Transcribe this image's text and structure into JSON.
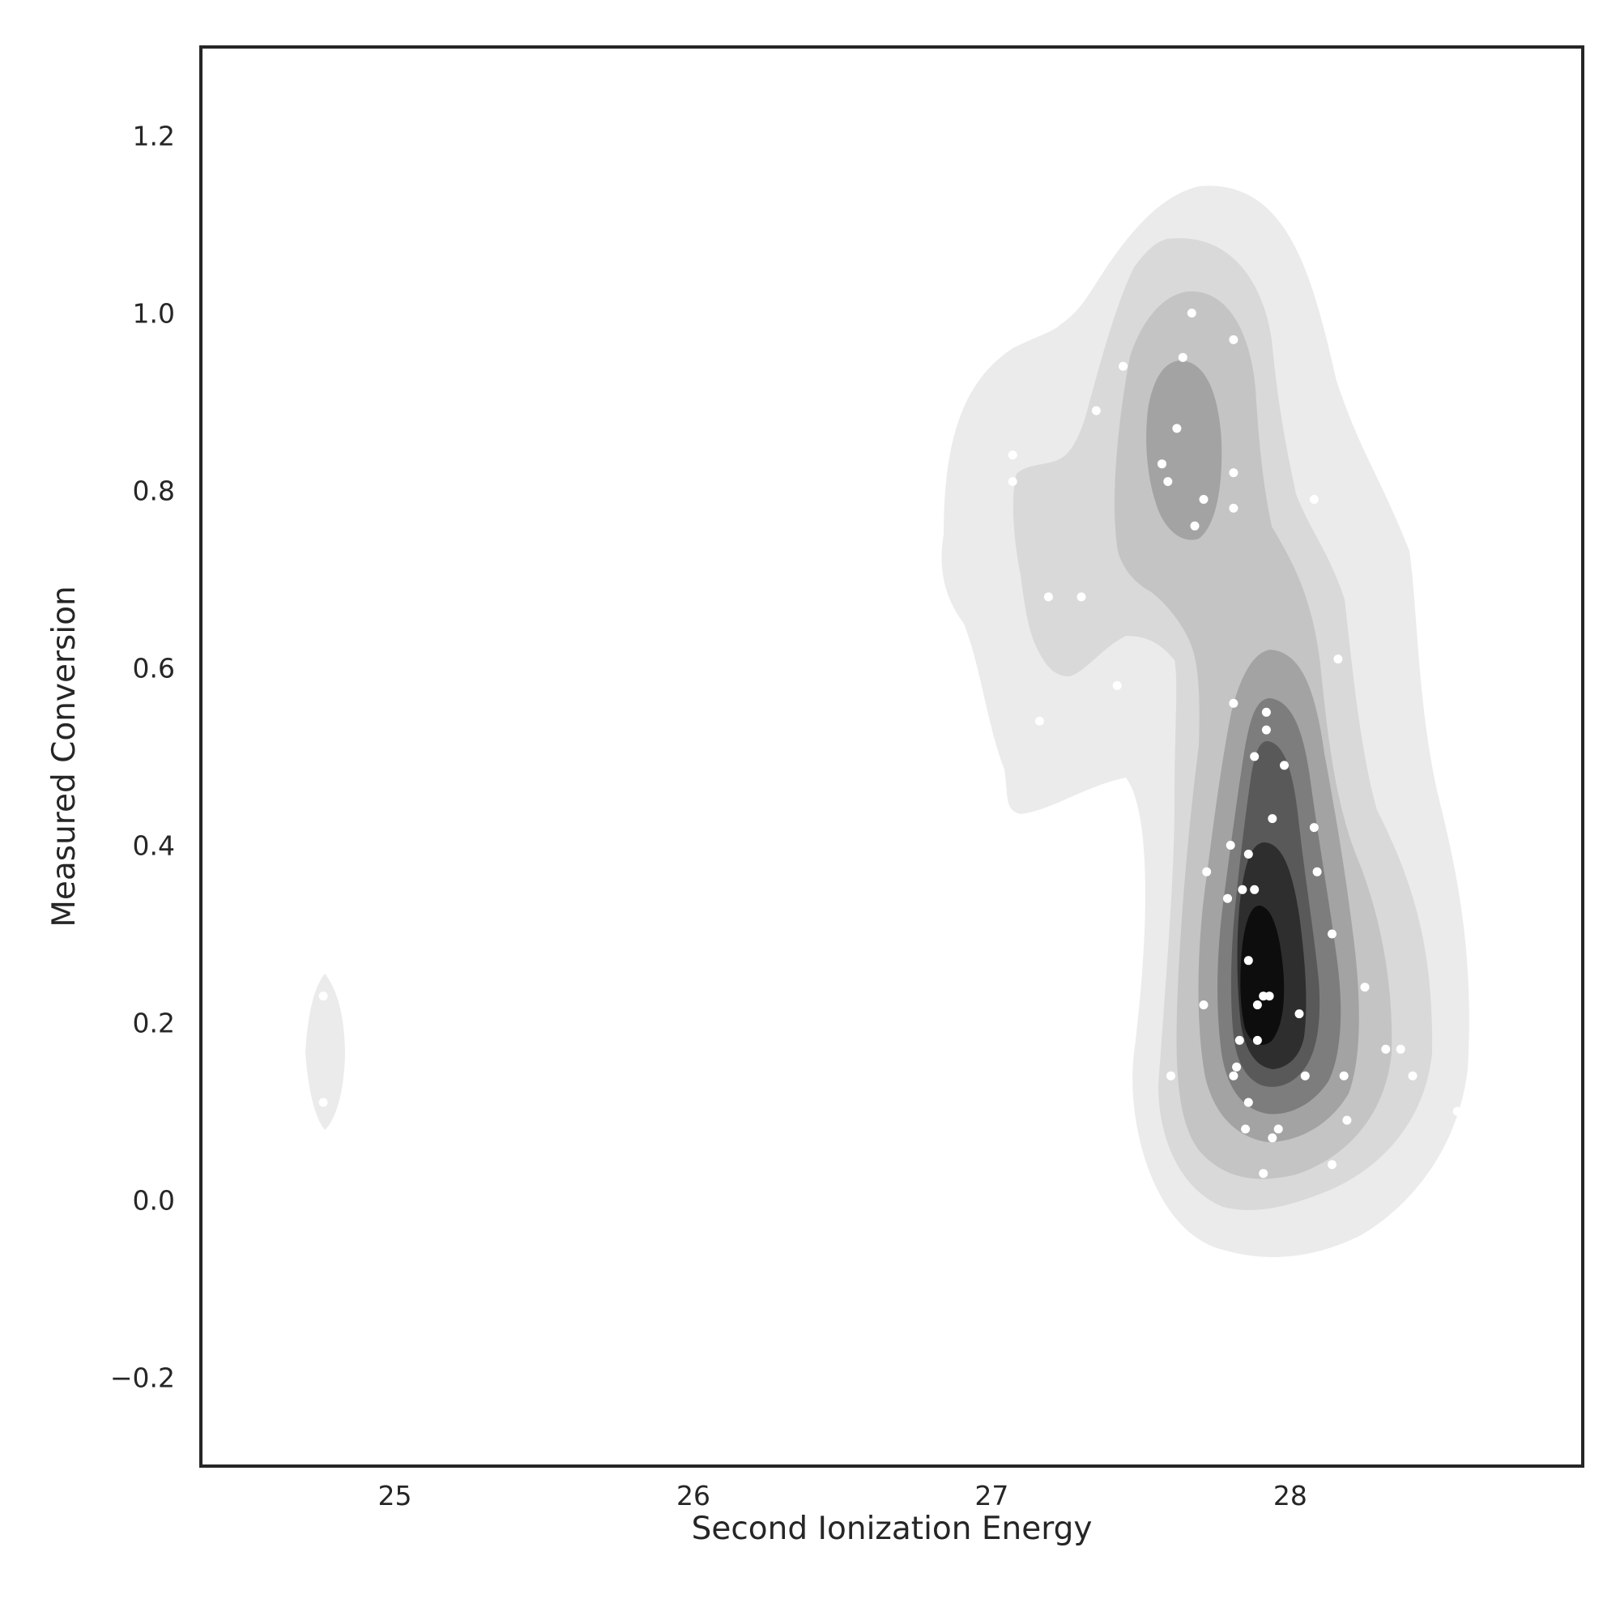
{
  "chart_data": {
    "type": "scatter",
    "subtype": "kde-density-contour",
    "title": "",
    "xlabel": "Second Ionization Energy",
    "ylabel": "Measured Conversion",
    "xlim": [
      24.35,
      28.98
    ],
    "ylim": [
      -0.3,
      1.3
    ],
    "x_ticks": [
      25,
      26,
      27,
      28
    ],
    "y_ticks": [
      -0.2,
      0.0,
      0.2,
      0.4,
      0.6,
      0.8,
      1.0,
      1.2
    ],
    "x_tick_labels": [
      "25",
      "26",
      "27",
      "28"
    ],
    "y_tick_labels": [
      "−0.2",
      "0.0",
      "0.2",
      "0.4",
      "0.6",
      "0.8",
      "1.0",
      "1.2"
    ],
    "grid": false,
    "legend": "none",
    "colors": {
      "points": "#ffffff",
      "axes": "#262626",
      "contour_levels": [
        "#ebebeb",
        "#d9d9d9",
        "#c4c4c4",
        "#a3a3a3",
        "#7d7d7d",
        "#595959",
        "#2e2e2e",
        "#0d0d0d"
      ]
    },
    "density_peaks": [
      {
        "x": 27.9,
        "y": 0.24,
        "levels": 8
      },
      {
        "x": 27.65,
        "y": 0.86,
        "levels": 4
      },
      {
        "x": 24.76,
        "y": 0.17,
        "levels": 1
      }
    ],
    "points": [
      {
        "x": 24.76,
        "y": 0.23
      },
      {
        "x": 24.76,
        "y": 0.11
      },
      {
        "x": 27.07,
        "y": 0.84
      },
      {
        "x": 27.07,
        "y": 0.81
      },
      {
        "x": 27.19,
        "y": 0.68
      },
      {
        "x": 27.3,
        "y": 0.68
      },
      {
        "x": 27.35,
        "y": 0.89
      },
      {
        "x": 27.44,
        "y": 0.94
      },
      {
        "x": 27.42,
        "y": 0.58
      },
      {
        "x": 27.16,
        "y": 0.54
      },
      {
        "x": 27.57,
        "y": 0.83
      },
      {
        "x": 27.59,
        "y": 0.81
      },
      {
        "x": 27.62,
        "y": 0.87
      },
      {
        "x": 27.64,
        "y": 0.95
      },
      {
        "x": 27.67,
        "y": 1.0
      },
      {
        "x": 27.71,
        "y": 0.79
      },
      {
        "x": 27.68,
        "y": 0.76
      },
      {
        "x": 27.81,
        "y": 0.97
      },
      {
        "x": 27.81,
        "y": 0.82
      },
      {
        "x": 27.81,
        "y": 0.78
      },
      {
        "x": 28.08,
        "y": 0.79
      },
      {
        "x": 28.16,
        "y": 0.61
      },
      {
        "x": 27.81,
        "y": 0.56
      },
      {
        "x": 27.92,
        "y": 0.55
      },
      {
        "x": 27.92,
        "y": 0.53
      },
      {
        "x": 27.88,
        "y": 0.5
      },
      {
        "x": 27.98,
        "y": 0.49
      },
      {
        "x": 27.94,
        "y": 0.43
      },
      {
        "x": 28.08,
        "y": 0.42
      },
      {
        "x": 27.8,
        "y": 0.4
      },
      {
        "x": 27.86,
        "y": 0.39
      },
      {
        "x": 27.72,
        "y": 0.37
      },
      {
        "x": 28.09,
        "y": 0.37
      },
      {
        "x": 27.84,
        "y": 0.35
      },
      {
        "x": 27.88,
        "y": 0.35
      },
      {
        "x": 27.79,
        "y": 0.34
      },
      {
        "x": 28.14,
        "y": 0.3
      },
      {
        "x": 27.86,
        "y": 0.27
      },
      {
        "x": 28.25,
        "y": 0.24
      },
      {
        "x": 27.91,
        "y": 0.23
      },
      {
        "x": 27.93,
        "y": 0.23
      },
      {
        "x": 27.89,
        "y": 0.22
      },
      {
        "x": 27.71,
        "y": 0.22
      },
      {
        "x": 28.03,
        "y": 0.21
      },
      {
        "x": 27.89,
        "y": 0.18
      },
      {
        "x": 27.83,
        "y": 0.18
      },
      {
        "x": 28.37,
        "y": 0.17
      },
      {
        "x": 28.32,
        "y": 0.17
      },
      {
        "x": 28.41,
        "y": 0.14
      },
      {
        "x": 27.82,
        "y": 0.15
      },
      {
        "x": 27.81,
        "y": 0.14
      },
      {
        "x": 28.05,
        "y": 0.14
      },
      {
        "x": 28.18,
        "y": 0.14
      },
      {
        "x": 27.6,
        "y": 0.14
      },
      {
        "x": 27.86,
        "y": 0.11
      },
      {
        "x": 28.19,
        "y": 0.09
      },
      {
        "x": 27.96,
        "y": 0.08
      },
      {
        "x": 27.85,
        "y": 0.08
      },
      {
        "x": 27.94,
        "y": 0.07
      },
      {
        "x": 28.14,
        "y": 0.04
      },
      {
        "x": 27.91,
        "y": 0.03
      },
      {
        "x": 28.56,
        "y": 0.1
      }
    ]
  }
}
